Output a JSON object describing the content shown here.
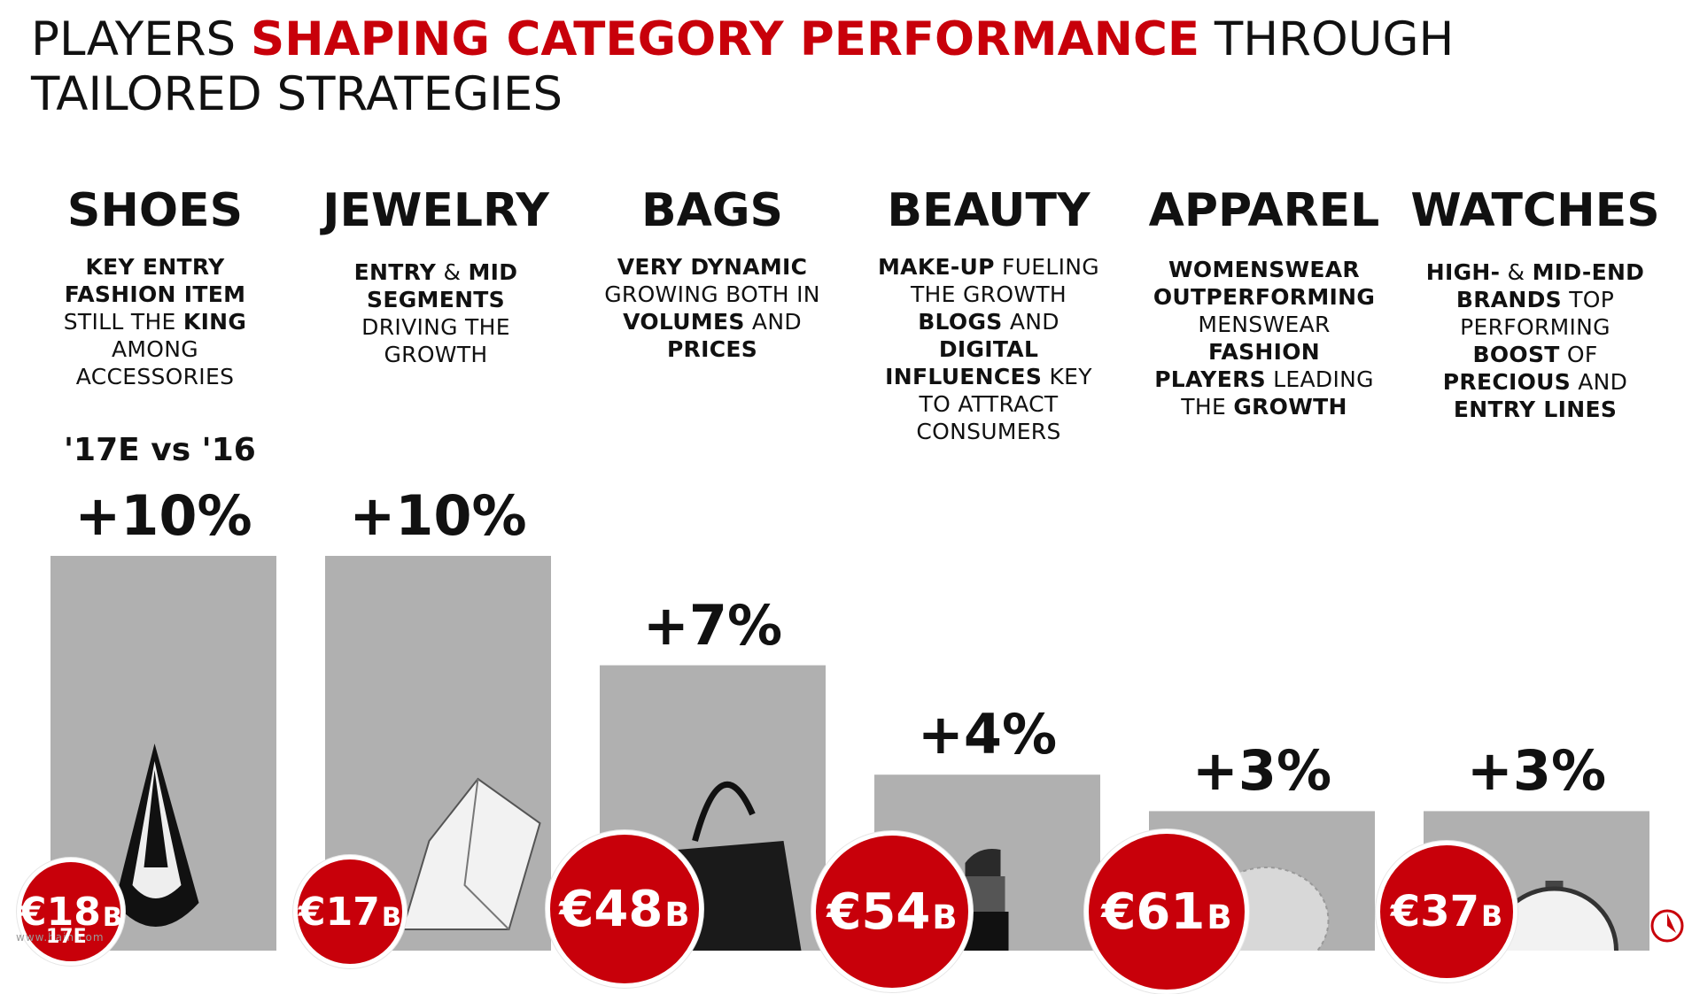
{
  "title": {
    "part1": "PLAYERS ",
    "highlight": "SHAPING CATEGORY PERFORMANCE",
    "part2": " THROUGH",
    "line2": "TAILORED STRATEGIES"
  },
  "period_label": "'17E vs '16",
  "year_label": "17E",
  "footnote": "www.bain.com",
  "colors": {
    "accent": "#c8000a",
    "bar": "#b0b0b0",
    "text": "#111111"
  },
  "categories": [
    {
      "name": "SHOES",
      "desc_lines": [
        [
          {
            "t": "KEY ENTRY",
            "b": true
          }
        ],
        [
          {
            "t": "FASHION ITEM",
            "b": true
          }
        ],
        [
          {
            "t": "STILL THE ",
            "b": false
          },
          {
            "t": "KING",
            "b": true
          }
        ],
        [
          {
            "t": "AMONG",
            "b": false
          }
        ],
        [
          {
            "t": "ACCESSORIES",
            "b": false
          }
        ]
      ],
      "growth": "+10%",
      "market_value": "€18",
      "market_unit": "B",
      "icon": "shoe-icon"
    },
    {
      "name": "JEWELRY",
      "desc_lines": [
        [
          {
            "t": "ENTRY",
            "b": true
          },
          {
            "t": " & ",
            "b": false
          },
          {
            "t": "MID",
            "b": true
          }
        ],
        [
          {
            "t": "SEGMENTS",
            "b": true
          }
        ],
        [
          {
            "t": "DRIVING THE",
            "b": false
          }
        ],
        [
          {
            "t": "GROWTH",
            "b": false
          }
        ]
      ],
      "growth": "+10%",
      "market_value": "€17",
      "market_unit": "B",
      "icon": "diamond-icon"
    },
    {
      "name": "BAGS",
      "desc_lines": [
        [
          {
            "t": "VERY DYNAMIC",
            "b": true
          }
        ],
        [
          {
            "t": "GROWING BOTH IN",
            "b": false
          }
        ],
        [
          {
            "t": "VOLUMES",
            "b": true
          },
          {
            "t": " AND",
            "b": false
          }
        ],
        [
          {
            "t": "PRICES",
            "b": true
          }
        ]
      ],
      "growth": "+7%",
      "market_value": "€48",
      "market_unit": "B",
      "icon": "handbag-icon"
    },
    {
      "name": "BEAUTY",
      "desc_lines": [
        [
          {
            "t": "MAKE-UP",
            "b": true
          },
          {
            "t": " FUELING",
            "b": false
          }
        ],
        [
          {
            "t": "THE GROWTH",
            "b": false
          }
        ],
        [
          {
            "t": "BLOGS",
            "b": true
          },
          {
            "t": " AND",
            "b": false
          }
        ],
        [
          {
            "t": "DIGITAL",
            "b": true
          }
        ],
        [
          {
            "t": "INFLUENCES",
            "b": true
          },
          {
            "t": " KEY",
            "b": false
          }
        ],
        [
          {
            "t": "TO ATTRACT",
            "b": false
          }
        ],
        [
          {
            "t": "CONSUMERS",
            "b": false
          }
        ]
      ],
      "growth": "+4%",
      "market_value": "€54",
      "market_unit": "B",
      "icon": "lipstick-icon"
    },
    {
      "name": "APPAREL",
      "desc_lines": [
        [
          {
            "t": "WOMENSWEAR",
            "b": true
          }
        ],
        [
          {
            "t": "OUTPERFORMING",
            "b": true
          }
        ],
        [
          {
            "t": "MENSWEAR",
            "b": false
          }
        ],
        [
          {
            "t": "FASHION",
            "b": true
          }
        ],
        [
          {
            "t": "PLAYERS",
            "b": true
          },
          {
            "t": " LEADING",
            "b": false
          }
        ],
        [
          {
            "t": "THE ",
            "b": false
          },
          {
            "t": "GROWTH",
            "b": true
          }
        ]
      ],
      "growth": "+3%",
      "market_value": "€61",
      "market_unit": "B",
      "icon": "lace-fabric-icon"
    },
    {
      "name": "WATCHES",
      "desc_lines": [
        [
          {
            "t": "HIGH-",
            "b": true
          },
          {
            "t": " & ",
            "b": false
          },
          {
            "t": "MID-END",
            "b": true
          }
        ],
        [
          {
            "t": "BRANDS",
            "b": true
          },
          {
            "t": " TOP",
            "b": false
          }
        ],
        [
          {
            "t": "PERFORMING",
            "b": false
          }
        ],
        [
          {
            "t": "BOOST",
            "b": true
          },
          {
            "t": " OF",
            "b": false
          }
        ],
        [
          {
            "t": "PRECIOUS",
            "b": true
          },
          {
            "t": " AND",
            "b": false
          }
        ],
        [
          {
            "t": "ENTRY LINES",
            "b": true
          }
        ]
      ],
      "growth": "+3%",
      "market_value": "€37",
      "market_unit": "B",
      "icon": "watch-icon"
    }
  ],
  "chart_data": {
    "type": "bar",
    "categories": [
      "SHOES",
      "JEWELRY",
      "BAGS",
      "BEAUTY",
      "APPAREL",
      "WATCHES"
    ],
    "values": [
      10,
      10,
      7,
      4,
      3,
      3
    ],
    "unit": "%",
    "series_label": "'17E vs '16",
    "market_size_eur_b": [
      18,
      17,
      48,
      54,
      61,
      37
    ],
    "grid": false,
    "legend": "none"
  }
}
